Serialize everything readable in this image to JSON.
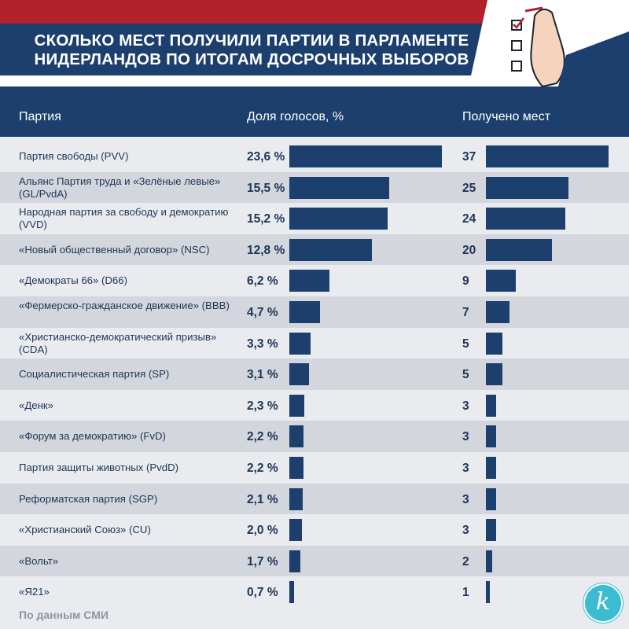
{
  "title_lines": [
    "СКОЛЬКО МЕСТ ПОЛУЧИЛИ ПАРТИИ В ПАРЛАМЕНТЕ",
    "НИДЕРЛАНДОВ ПО ИТОГАМ ДОСРОЧНЫХ ВЫБОРОВ"
  ],
  "headers": {
    "party": "Партия",
    "votes": "Доля голосов, %",
    "seats": "Получено мест"
  },
  "source": "По данным  СМИ",
  "colors": {
    "flag_red": "#b3222c",
    "flag_blue": "#1c3f6e",
    "bar": "#1c3f6e",
    "logo": "#3bbcd0"
  },
  "logo_icon": "k-circle-logo",
  "chart_data": {
    "type": "table",
    "columns": [
      "Партия",
      "Доля голосов, %",
      "Получено мест"
    ],
    "rows": [
      {
        "party": "Партия свободы (PVV)",
        "pct": 23.6,
        "pct_label": "23,6 %",
        "seats": 37
      },
      {
        "party": "Альянс Партия труда и «Зелёные левые» (GL/PvdA)",
        "pct": 15.5,
        "pct_label": "15,5 %",
        "seats": 25
      },
      {
        "party": "Народная партия за свободу и демократию (VVD)",
        "pct": 15.2,
        "pct_label": "15,2 %",
        "seats": 24
      },
      {
        "party": "«Новый общественный договор» (NSC)",
        "pct": 12.8,
        "pct_label": "12,8 %",
        "seats": 20
      },
      {
        "party": "«Демократы 66» (D66)",
        "pct": 6.2,
        "pct_label": "6,2 %",
        "seats": 9
      },
      {
        "party": "«Фермерско-гражданское движение» (BBB)",
        "pct": 4.7,
        "pct_label": "4,7 %",
        "seats": 7
      },
      {
        "party": "«Христианско-демократический призыв» (CDA)",
        "pct": 3.3,
        "pct_label": "3,3 %",
        "seats": 5
      },
      {
        "party": "Социалистическая партия (SP)",
        "pct": 3.1,
        "pct_label": "3,1 %",
        "seats": 5
      },
      {
        "party": "«Денк»",
        "pct": 2.3,
        "pct_label": "2,3 %",
        "seats": 3
      },
      {
        "party": "«Форум за демократию» (FvD)",
        "pct": 2.2,
        "pct_label": "2,2 %",
        "seats": 3
      },
      {
        "party": "Партия защиты животных (PvdD)",
        "pct": 2.2,
        "pct_label": "2,2 %",
        "seats": 3
      },
      {
        "party": "Реформатская партия (SGP)",
        "pct": 2.1,
        "pct_label": "2,1 %",
        "seats": 3
      },
      {
        "party": "«Христианский Союз» (CU)",
        "pct": 2.0,
        "pct_label": "2,0 %",
        "seats": 3
      },
      {
        "party": "«Вольт»",
        "pct": 1.7,
        "pct_label": "1,7 %",
        "seats": 2
      },
      {
        "party": "«Я21»",
        "pct": 0.7,
        "pct_label": "0,7 %",
        "seats": 1
      }
    ]
  }
}
